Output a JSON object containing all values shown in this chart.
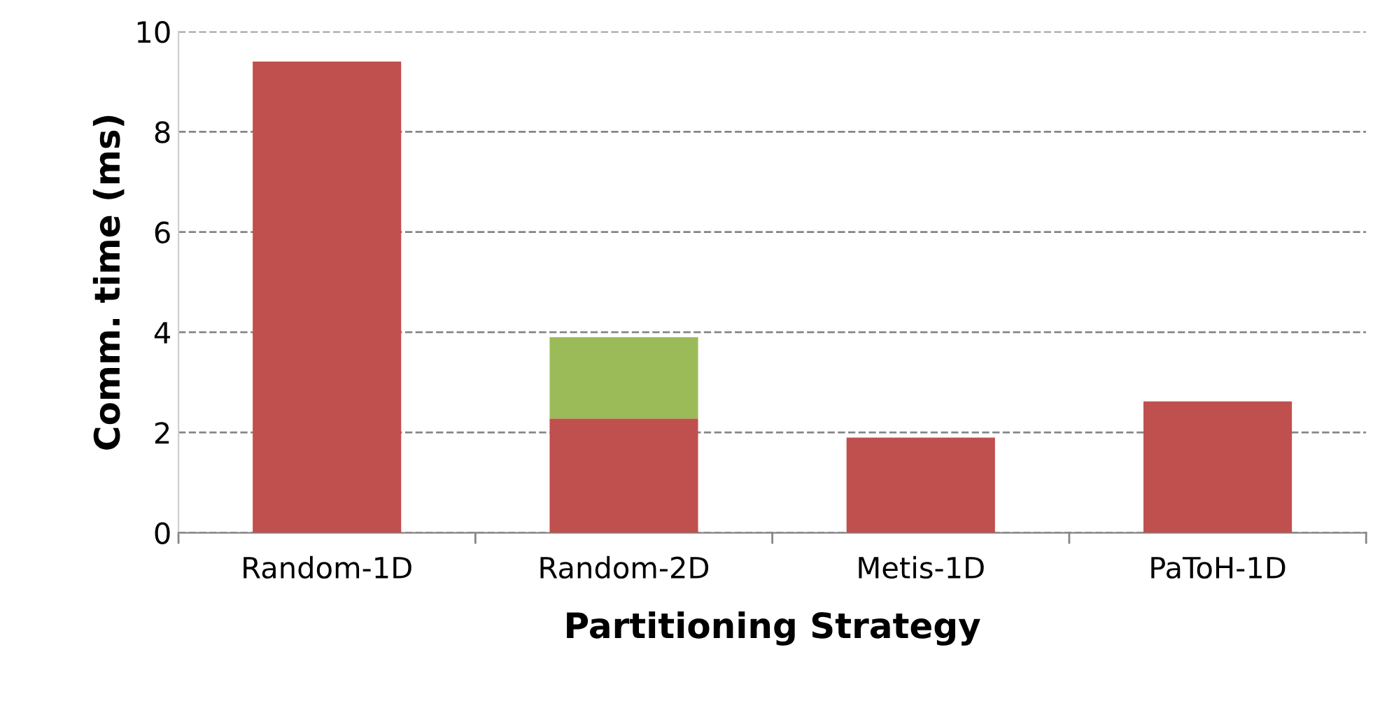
{
  "chart_data": {
    "type": "bar",
    "stacked": true,
    "xlabel": "Partitioning Strategy",
    "ylabel": "Comm. time (ms)",
    "categories": [
      "Random-1D",
      "Random-2D",
      "Metis-1D",
      "PaToH-1D"
    ],
    "series": [
      {
        "color": "#c0504d",
        "values": [
          9.4,
          2.28,
          1.9,
          2.62
        ]
      },
      {
        "color": "#9bbb59",
        "values": [
          null,
          1.62,
          null,
          null
        ]
      }
    ],
    "ylim": [
      0,
      10
    ],
    "yticks": [
      0,
      2,
      4,
      6,
      8,
      10
    ],
    "grid": "y",
    "legend": false
  }
}
